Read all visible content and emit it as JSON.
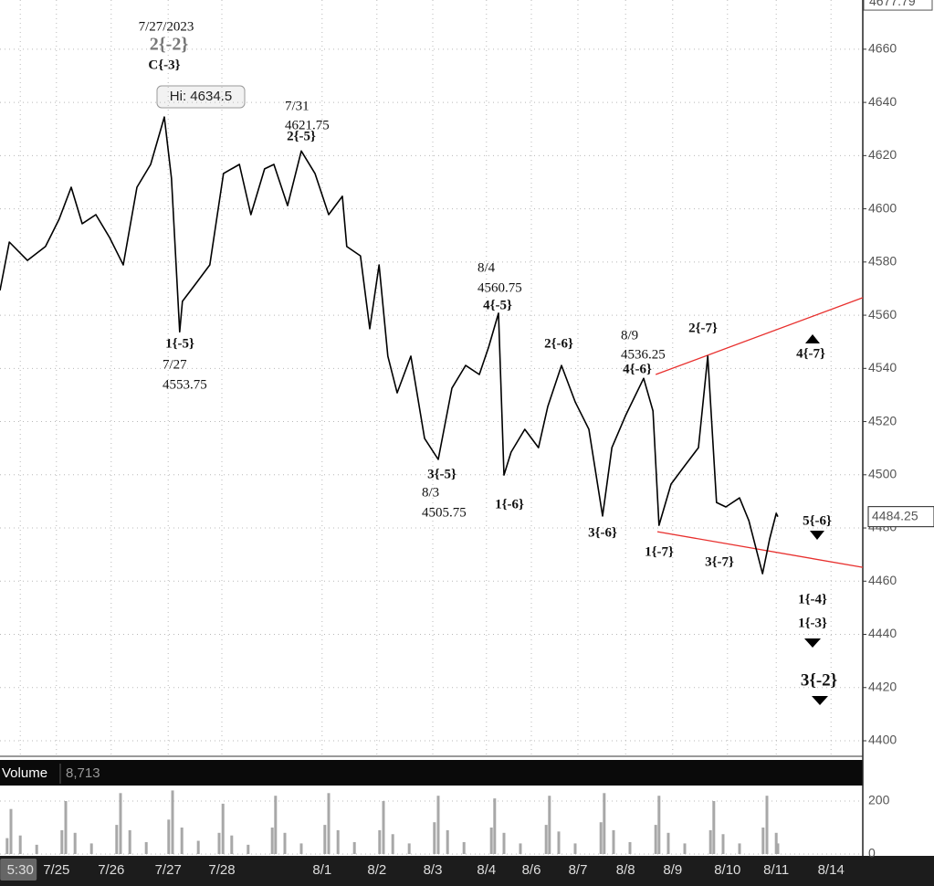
{
  "chart_data": {
    "type": "line",
    "xlim": [
      0,
      15.75
    ],
    "xticks": [
      {
        "value": 0.37,
        "label": "5:30"
      },
      {
        "value": 1.03,
        "label": "7/25"
      },
      {
        "value": 2.03,
        "label": "7/26"
      },
      {
        "value": 3.07,
        "label": "7/27"
      },
      {
        "value": 4.05,
        "label": "7/28"
      },
      {
        "value": 5.88,
        "label": "8/1"
      },
      {
        "value": 6.88,
        "label": "8/2"
      },
      {
        "value": 7.9,
        "label": "8/3"
      },
      {
        "value": 8.88,
        "label": "8/4"
      },
      {
        "value": 9.7,
        "label": "8/6"
      },
      {
        "value": 10.55,
        "label": "8/7"
      },
      {
        "value": 11.42,
        "label": "8/8"
      },
      {
        "value": 12.28,
        "label": "8/9"
      },
      {
        "value": 13.28,
        "label": "8/10"
      },
      {
        "value": 14.17,
        "label": "8/11"
      },
      {
        "value": 15.17,
        "label": "8/14"
      }
    ],
    "ylim": [
      4394.16,
      4678.5
    ],
    "yticks": [
      4400,
      4420,
      4440,
      4460,
      4480,
      4500,
      4520,
      4540,
      4560,
      4580,
      4600,
      4620,
      4640,
      4660
    ],
    "grid": true,
    "x": [
      0,
      0.17,
      0.5,
      0.83,
      1.08,
      1.3,
      1.5,
      1.75,
      2,
      2.25,
      2.5,
      2.75,
      3,
      3.13,
      3.28,
      3.33,
      3.58,
      3.83,
      4.08,
      4.37,
      4.58,
      4.83,
      5,
      5.25,
      5.5,
      5.75,
      6,
      6.25,
      6.33,
      6.58,
      6.75,
      6.92,
      7.08,
      7.25,
      7.5,
      7.75,
      8,
      8.25,
      8.5,
      8.75,
      8.92,
      9.1,
      9.2,
      9.33,
      9.58,
      9.83,
      10,
      10.25,
      10.5,
      10.75,
      11,
      11.17,
      11.42,
      11.75,
      11.92,
      12.03,
      12.25,
      12.5,
      12.75,
      12.92,
      13.08,
      13.25,
      13.5,
      13.67,
      13.92,
      14.05,
      14.17,
      14.2
    ],
    "series": [
      {
        "color": "#000000",
        "values": [
          4569.3,
          4587.5,
          4580.6,
          4585.8,
          4596.1,
          4608.1,
          4594.4,
          4597.8,
          4589.2,
          4578.9,
          4608.1,
          4616.7,
          4634.5,
          4611.5,
          4553.75,
          4565.2,
          4572,
          4578.9,
          4613.3,
          4616.7,
          4597.8,
          4615,
          4616.7,
          4601.2,
          4621.75,
          4613.3,
          4597.8,
          4604.7,
          4585.8,
          4582.3,
          4554.9,
          4578.9,
          4544.6,
          4530.8,
          4544.6,
          4513.7,
          4505.75,
          4532.6,
          4541.1,
          4537.7,
          4548,
          4560.75,
          4499.9,
          4508.5,
          4517.1,
          4510.2,
          4525.7,
          4541.1,
          4527.4,
          4517.1,
          4484.5,
          4510.2,
          4522.3,
          4536.25,
          4524,
          4481,
          4496.5,
          4503.4,
          4510.2,
          4544.6,
          4489.6,
          4487.9,
          4491.3,
          4482.8,
          4462.8,
          4475.9,
          4485.5,
          4484.25
        ]
      }
    ],
    "trendlines": [
      {
        "color": "#e8302e",
        "x": [
          11.97,
          15.75
        ],
        "values": [
          4537.7,
          4566.6
        ]
      },
      {
        "color": "#e8302e",
        "x": [
          12.0,
          15.75
        ],
        "values": [
          4478.6,
          4465.2
        ]
      }
    ],
    "price_labels": {
      "top": 4677.79,
      "last": 4484.25
    },
    "annotations": [
      "7/27/2023",
      "2{-2}",
      "C{-3}",
      "Hi: 4634.5",
      "7/31",
      "4621.75",
      "2{-5}",
      "1{-5}",
      "7/27",
      "4553.75",
      "8/4",
      "4560.75",
      "4{-5}",
      "2{-6}",
      "8/9",
      "4536.25",
      "4{-6}",
      "2{-7}",
      "4{-7}",
      "3{-5}",
      "8/3",
      "4505.75",
      "1{-6}",
      "3{-6}",
      "1{-7}",
      "3{-7}",
      "5{-6}",
      "1{-4}",
      "1{-3}",
      "3{-2}"
    ],
    "volume": {
      "label": "Volume",
      "last": {
        "value": 8713,
        "label": "8,713"
      },
      "color": "#a8a8a8",
      "ylim": [
        0,
        251.7
      ],
      "yticks": [
        0,
        200
      ],
      "x": [
        0.13,
        0.2,
        0.37,
        0.67,
        1.13,
        1.2,
        1.37,
        1.67,
        2.13,
        2.2,
        2.37,
        2.67,
        3.08,
        3.15,
        3.32,
        3.62,
        4.0,
        4.07,
        4.23,
        4.53,
        4.97,
        5.03,
        5.2,
        5.5,
        5.93,
        6.0,
        6.17,
        6.47,
        6.93,
        7.0,
        7.17,
        7.47,
        7.93,
        8.0,
        8.17,
        8.47,
        8.97,
        9.03,
        9.2,
        9.5,
        9.97,
        10.03,
        10.2,
        10.5,
        10.97,
        11.03,
        11.2,
        11.5,
        11.97,
        12.03,
        12.2,
        12.5,
        12.97,
        13.03,
        13.2,
        13.5,
        13.93,
        14.0,
        14.17,
        14.2
      ],
      "values": [
        60,
        170,
        70,
        35,
        90,
        200,
        80,
        40,
        110,
        230,
        90,
        45,
        130,
        240,
        100,
        50,
        80,
        190,
        70,
        35,
        100,
        220,
        80,
        40,
        110,
        230,
        90,
        45,
        90,
        200,
        75,
        40,
        120,
        220,
        90,
        45,
        100,
        210,
        80,
        40,
        110,
        220,
        85,
        40,
        120,
        230,
        90,
        45,
        110,
        220,
        80,
        40,
        90,
        200,
        75,
        40,
        100,
        220,
        80,
        40
      ]
    }
  }
}
